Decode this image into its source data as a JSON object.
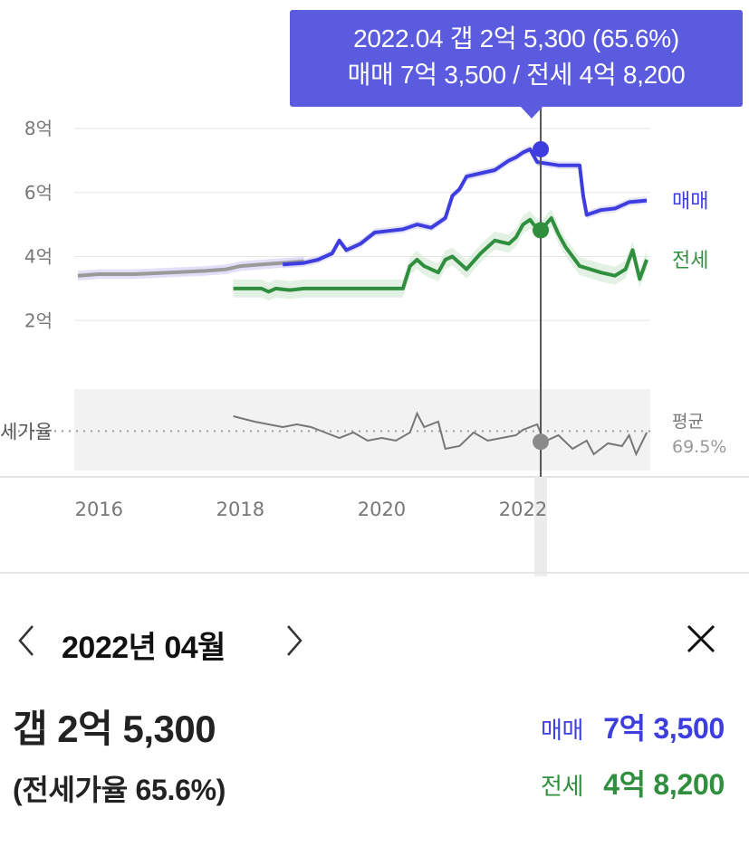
{
  "tooltip": {
    "line1": "2022.04  갭 2억 5,300 (65.6%)",
    "line2": "매매 7억 3,500 / 전세 4억 8,200"
  },
  "colors": {
    "sale": "#3d3de0",
    "jeonse": "#2f8f3e",
    "ratio": "#777777",
    "pre_sale": "#9a9a9a",
    "tooltip_bg": "#5b5bdf"
  },
  "panel": {
    "month": "2022년 04월",
    "prev_icon": "chevron-left-icon",
    "next_icon": "chevron-right-icon",
    "close_icon": "close-icon",
    "gap": "갭 2억 5,300",
    "ratio": "(전세가율 65.6%)",
    "sale_label": "매매",
    "sale_value": "7억 3,500",
    "jeonse_label": "전세",
    "jeonse_value": "4억 8,200"
  },
  "chart_data": {
    "type": "line",
    "y_unit": "억",
    "ylim": [
      0,
      8
    ],
    "y_ticks": [
      {
        "v": 8,
        "label": "8억"
      },
      {
        "v": 6,
        "label": "6억"
      },
      {
        "v": 4,
        "label": "4억"
      },
      {
        "v": 2,
        "label": "2억"
      }
    ],
    "x_ticks": [
      {
        "v": 2016,
        "label": "2016"
      },
      {
        "v": 2018,
        "label": "2018"
      },
      {
        "v": 2020,
        "label": "2020"
      },
      {
        "v": 2022,
        "label": "2022"
      }
    ],
    "xlim": [
      2015.65,
      2023.8
    ],
    "grid": true,
    "ratio_band_label": "세가율",
    "ratio_avg_label": "평균",
    "ratio_avg_value": "69.5%",
    "series": [
      {
        "name": "매매",
        "points": [
          [
            2018.6,
            3.75
          ],
          [
            2018.9,
            3.8
          ],
          [
            2019.1,
            3.9
          ],
          [
            2019.3,
            4.1
          ],
          [
            2019.4,
            4.5
          ],
          [
            2019.5,
            4.2
          ],
          [
            2019.7,
            4.4
          ],
          [
            2019.9,
            4.75
          ],
          [
            2020.1,
            4.8
          ],
          [
            2020.3,
            4.85
          ],
          [
            2020.5,
            5.0
          ],
          [
            2020.7,
            4.9
          ],
          [
            2020.9,
            5.2
          ],
          [
            2021.0,
            5.9
          ],
          [
            2021.1,
            6.1
          ],
          [
            2021.2,
            6.5
          ],
          [
            2021.4,
            6.6
          ],
          [
            2021.6,
            6.7
          ],
          [
            2021.8,
            7.0
          ],
          [
            2021.9,
            7.1
          ],
          [
            2022.0,
            7.25
          ],
          [
            2022.1,
            7.35
          ],
          [
            2022.2,
            6.95
          ],
          [
            2022.5,
            6.85
          ],
          [
            2022.8,
            6.85
          ],
          [
            2022.85,
            5.9
          ],
          [
            2022.9,
            5.3
          ],
          [
            2023.1,
            5.45
          ],
          [
            2023.3,
            5.5
          ],
          [
            2023.5,
            5.7
          ],
          [
            2023.75,
            5.75
          ]
        ]
      },
      {
        "name": "전세",
        "points": [
          [
            2017.9,
            3.0
          ],
          [
            2018.3,
            3.0
          ],
          [
            2018.4,
            2.9
          ],
          [
            2018.5,
            3.0
          ],
          [
            2018.7,
            2.95
          ],
          [
            2018.9,
            3.0
          ],
          [
            2019.5,
            3.0
          ],
          [
            2020.3,
            3.0
          ],
          [
            2020.4,
            3.7
          ],
          [
            2020.5,
            3.9
          ],
          [
            2020.6,
            3.7
          ],
          [
            2020.8,
            3.5
          ],
          [
            2020.9,
            3.9
          ],
          [
            2021.0,
            4.0
          ],
          [
            2021.2,
            3.6
          ],
          [
            2021.4,
            4.1
          ],
          [
            2021.6,
            4.5
          ],
          [
            2021.8,
            4.4
          ],
          [
            2021.9,
            4.6
          ],
          [
            2022.0,
            5.0
          ],
          [
            2022.1,
            5.15
          ],
          [
            2022.15,
            5.0
          ],
          [
            2022.25,
            4.82
          ],
          [
            2022.4,
            5.2
          ],
          [
            2022.5,
            4.7
          ],
          [
            2022.6,
            4.3
          ],
          [
            2022.8,
            3.7
          ],
          [
            2022.95,
            3.6
          ],
          [
            2023.1,
            3.5
          ],
          [
            2023.3,
            3.4
          ],
          [
            2023.45,
            3.6
          ],
          [
            2023.55,
            4.2
          ],
          [
            2023.65,
            3.3
          ],
          [
            2023.75,
            3.9
          ]
        ]
      },
      {
        "name": "pre-2019 매매",
        "points": [
          [
            2015.7,
            3.4
          ],
          [
            2016.0,
            3.45
          ],
          [
            2016.5,
            3.45
          ],
          [
            2017.0,
            3.5
          ],
          [
            2017.5,
            3.55
          ],
          [
            2017.8,
            3.6
          ],
          [
            2018.0,
            3.7
          ],
          [
            2018.3,
            3.75
          ],
          [
            2018.6,
            3.8
          ],
          [
            2018.9,
            3.85
          ]
        ]
      }
    ],
    "ratio_series": {
      "name": "세가율",
      "ylim": [
        55,
        85
      ],
      "avg": 69.5,
      "points": [
        [
          2017.9,
          75
        ],
        [
          2018.2,
          73
        ],
        [
          2018.4,
          72
        ],
        [
          2018.6,
          71
        ],
        [
          2018.8,
          72
        ],
        [
          2019.0,
          71
        ],
        [
          2019.2,
          69
        ],
        [
          2019.4,
          67
        ],
        [
          2019.6,
          69
        ],
        [
          2019.8,
          66
        ],
        [
          2020.0,
          67
        ],
        [
          2020.2,
          66
        ],
        [
          2020.4,
          69
        ],
        [
          2020.5,
          76
        ],
        [
          2020.6,
          71
        ],
        [
          2020.8,
          73
        ],
        [
          2020.9,
          63
        ],
        [
          2021.1,
          64
        ],
        [
          2021.3,
          69
        ],
        [
          2021.5,
          66
        ],
        [
          2021.7,
          67
        ],
        [
          2021.9,
          68
        ],
        [
          2022.0,
          70
        ],
        [
          2022.2,
          72
        ],
        [
          2022.3,
          65.6
        ],
        [
          2022.5,
          68
        ],
        [
          2022.7,
          63
        ],
        [
          2022.9,
          66
        ],
        [
          2023.0,
          61
        ],
        [
          2023.2,
          65
        ],
        [
          2023.4,
          64
        ],
        [
          2023.5,
          68
        ],
        [
          2023.6,
          61
        ],
        [
          2023.75,
          69
        ]
      ]
    },
    "selected": {
      "x": 2022.25,
      "label": "2022"
    }
  }
}
